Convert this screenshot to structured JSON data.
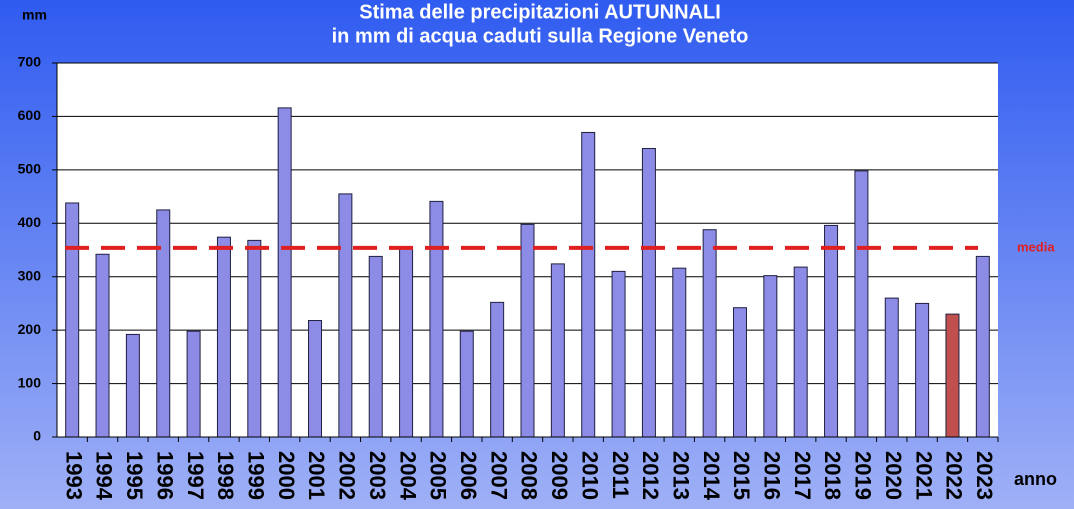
{
  "chart_data": {
    "type": "bar",
    "title": "Stima delle precipitazioni AUTUNNALI",
    "subtitle": "in mm di acqua caduti sulla  Regione Veneto",
    "y_label": "mm",
    "x_label": "anno",
    "categories": [
      "1993",
      "1994",
      "1995",
      "1996",
      "1997",
      "1998",
      "1999",
      "2000",
      "2001",
      "2002",
      "2003",
      "2004",
      "2005",
      "2006",
      "2007",
      "2008",
      "2009",
      "2010",
      "2011",
      "2012",
      "2013",
      "2014",
      "2015",
      "2016",
      "2017",
      "2018",
      "2019",
      "2020",
      "2021",
      "2022",
      "2023"
    ],
    "values": [
      438,
      342,
      192,
      425,
      198,
      374,
      368,
      616,
      218,
      455,
      338,
      352,
      441,
      198,
      252,
      398,
      324,
      570,
      310,
      540,
      316,
      388,
      242,
      302,
      318,
      396,
      498,
      260,
      250,
      230,
      338
    ],
    "colors": [
      "#8c8ce6",
      "#8c8ce6",
      "#8c8ce6",
      "#8c8ce6",
      "#8c8ce6",
      "#8c8ce6",
      "#8c8ce6",
      "#8c8ce6",
      "#8c8ce6",
      "#8c8ce6",
      "#8c8ce6",
      "#8c8ce6",
      "#8c8ce6",
      "#8c8ce6",
      "#8c8ce6",
      "#8c8ce6",
      "#8c8ce6",
      "#8c8ce6",
      "#8c8ce6",
      "#8c8ce6",
      "#8c8ce6",
      "#8c8ce6",
      "#8c8ce6",
      "#8c8ce6",
      "#8c8ce6",
      "#8c8ce6",
      "#8c8ce6",
      "#8c8ce6",
      "#8c8ce6",
      "#c0504d",
      "#8c8ce6"
    ],
    "ylim": [
      0,
      700
    ],
    "yticks": [
      0,
      100,
      200,
      300,
      400,
      500,
      600,
      700
    ],
    "grid": true,
    "reference_line": {
      "label": "media",
      "value": 354,
      "color": "#e02020"
    }
  }
}
